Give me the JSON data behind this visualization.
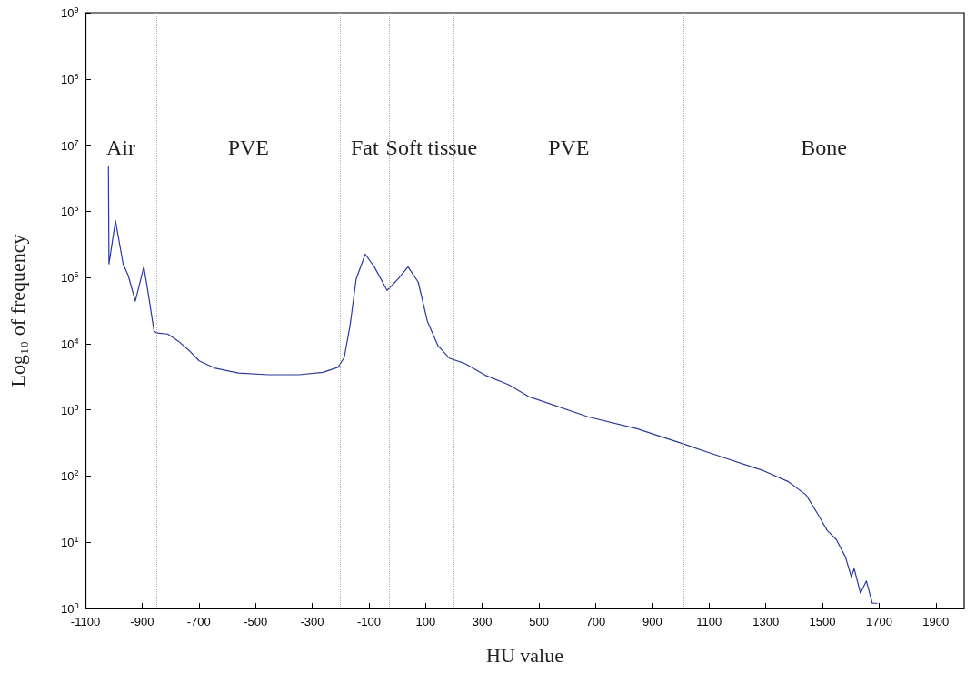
{
  "chart_data": {
    "type": "line",
    "xlabel": "HU value",
    "ylabel": "Log₁₀ of frequency",
    "log": "y",
    "grid": false,
    "marker": "none",
    "line_style": "solid",
    "xlim": [
      -1100,
      2000
    ],
    "xticks": [
      -1100,
      -900,
      -700,
      -500,
      -300,
      -100,
      100,
      300,
      500,
      700,
      900,
      1100,
      1300,
      1500,
      1700,
      1900
    ],
    "ylim": [
      1,
      1000000000
    ],
    "yticks": [
      {
        "value": 1,
        "label": "10$^{0}$"
      },
      {
        "value": 10,
        "label": "10$^{1}$"
      },
      {
        "value": 100,
        "label": "10$^{2}$"
      },
      {
        "value": 1000,
        "label": "10$^{3}$"
      },
      {
        "value": 10000,
        "label": "10$^{4}$"
      },
      {
        "value": 100000,
        "label": "10$^{5}$"
      },
      {
        "value": 1000000,
        "label": "10$^{6}$"
      },
      {
        "value": 10000000,
        "label": "10$^{7}$"
      },
      {
        "value": 100000000,
        "label": "10$^{8}$"
      },
      {
        "value": 1000000000,
        "label": "10$^{9}$"
      }
    ],
    "series": [
      {
        "color": "#2b3a9a",
        "x": [
          -1019,
          -1017,
          -994,
          -967,
          -949,
          -924,
          -894,
          -880,
          -858,
          -848,
          -810,
          -773,
          -730,
          -699,
          -645,
          -560,
          -454,
          -347,
          -262,
          -209,
          -187,
          -166,
          -145,
          -113,
          -81,
          -36,
          4,
          38,
          74,
          106,
          143,
          185,
          239,
          313,
          393,
          462,
          675,
          846,
          919,
          1005,
          1165,
          1293,
          1378,
          1442,
          1485,
          1517,
          1549,
          1581,
          1602,
          1612,
          1634,
          1655,
          1676,
          1692
        ],
        "values": [
          4700000,
          160000,
          720000,
          160000,
          107000,
          44000,
          145000,
          63000,
          15500,
          14500,
          14000,
          11000,
          7600,
          5500,
          4300,
          3600,
          3400,
          3400,
          3700,
          4400,
          6200,
          19500,
          95000,
          225000,
          145000,
          64000,
          96000,
          145000,
          85000,
          22000,
          9400,
          6000,
          5000,
          3300,
          2400,
          1600,
          780,
          520,
          410,
          310,
          182,
          120,
          83,
          52,
          26,
          15,
          11,
          6,
          3,
          4,
          1.7,
          2.6,
          1.2,
          1.2
        ]
      }
    ],
    "ref_lines": [
      {
        "axis": "x",
        "value": -850,
        "color": "#b0b0b0",
        "line_style": "dotted"
      },
      {
        "axis": "x",
        "value": -200,
        "color": "#b0b0b0",
        "line_style": "dotted"
      },
      {
        "axis": "x",
        "value": -30,
        "color": "#b0b0b0",
        "line_style": "dotted"
      },
      {
        "axis": "x",
        "value": 200,
        "color": "#b0b0b0",
        "line_style": "dotted"
      },
      {
        "axis": "x",
        "value": 1010,
        "color": "#b0b0b0",
        "line_style": "dotted"
      }
    ],
    "annotations": [
      "Air",
      "PVE",
      "Fat",
      "Soft tissue",
      "PVE",
      "Bone"
    ]
  }
}
